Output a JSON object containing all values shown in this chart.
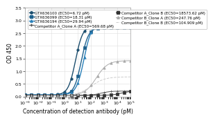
{
  "title": "",
  "xlabel": "Concentration of detection antibody (pM)",
  "ylabel": "OD 450",
  "xlim_log": [
    -3,
    5
  ],
  "ylim": [
    0,
    3.5
  ],
  "yticks": [
    0,
    0.5,
    1,
    1.5,
    2,
    2.5,
    3,
    3.5
  ],
  "series": [
    {
      "label": "GTX636100 (EC50=6.72 pM)",
      "color": "#1c4e6e",
      "marker": "o",
      "markersize": 2.5,
      "linewidth": 1.0,
      "bottom": 0.07,
      "top": 2.78,
      "ec50": 6.72,
      "hill": 1.6
    },
    {
      "label": "GTX636099 (EC50=18.31 pM)",
      "color": "#1f618d",
      "marker": "s",
      "markersize": 2.5,
      "linewidth": 1.0,
      "bottom": 0.07,
      "top": 2.72,
      "ec50": 18.31,
      "hill": 1.6
    },
    {
      "label": "GTX636194 (EC50=29.94 pM)",
      "color": "#2980b9",
      "marker": "^",
      "markersize": 2.5,
      "linewidth": 1.0,
      "bottom": 0.07,
      "top": 2.92,
      "ec50": 29.94,
      "hill": 1.5
    },
    {
      "label": "Competitor A_Clone A (EC50=569.68 pM)",
      "color": "#555555",
      "marker": "+",
      "markersize": 3,
      "linewidth": 0.7,
      "bottom": 0.05,
      "top": 0.22,
      "ec50": 569.68,
      "hill": 1.2
    },
    {
      "label": "Competitor A_Clone B (EC50=18573.62 pM)",
      "color": "#333333",
      "marker": "s",
      "markersize": 2.2,
      "linewidth": 0.7,
      "bottom": 0.05,
      "top": 0.22,
      "ec50": 18573.62,
      "hill": 1.2
    },
    {
      "label": "Competitor B_Clone A (EC50=247.76 pM)",
      "color": "#aaaaaa",
      "marker": "^",
      "markersize": 2.5,
      "linewidth": 0.7,
      "bottom": 0.05,
      "top": 1.42,
      "ec50": 247.76,
      "hill": 1.0
    },
    {
      "label": "Competitor B_Clone B (EC50=104.909 pM)",
      "color": "#cccccc",
      "marker": null,
      "markersize": 0,
      "linewidth": 0.7,
      "linestyle": "--",
      "bottom": 0.05,
      "top": 0.78,
      "ec50": 104.909,
      "hill": 0.85
    }
  ],
  "legend_fontsize": 4.0,
  "tick_fontsize": 4.5,
  "label_fontsize": 5.5,
  "background_color": "#ffffff",
  "grid_color": "#dddddd"
}
